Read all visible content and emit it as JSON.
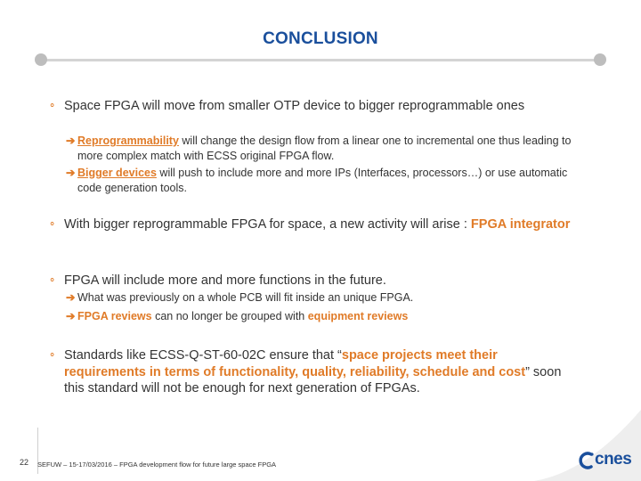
{
  "slide": {
    "title": "CONCLUSION",
    "page_number": "22",
    "footer": "SEFUW – 15-17/03/2016 – FPGA development flow for future large space FPGA",
    "logo_text": "cnes"
  },
  "bullets": [
    {
      "text": "Space FPGA will move from smaller OTP device to bigger reprogrammable ones",
      "subs": [
        {
          "em": "Reprogrammability",
          "rest": " will change the design flow from a linear one to incremental one thus leading to more complex match with ECSS original FPGA flow."
        },
        {
          "em": "Bigger devices",
          "rest": " will push to include more and more IPs (Interfaces, processors…) or use automatic code generation tools."
        }
      ]
    },
    {
      "text": "With bigger reprogrammable FPGA for space, a new activity will arise : ",
      "em": "FPGA integrator"
    },
    {
      "text": "FPGA will include more and more functions in the future.",
      "subs": [
        {
          "rest": "What was previously on a whole PCB will fit inside an unique FPGA."
        },
        {
          "em": "FPGA  reviews",
          "mid": " can no longer be grouped with ",
          "em2": "equipment reviews"
        }
      ]
    },
    {
      "pre": "Standards like ECSS-Q-ST-60-02C ensure that “",
      "em": "space projects meet their requirements in terms of functionality, quality, reliability, schedule and cost",
      "post": "” soon this standard will not be enough for next generation of FPGAs."
    }
  ],
  "colors": {
    "accent": "#e07b28",
    "title": "#1a4f9c"
  },
  "icons": {
    "bullet": "bullet-glyph-icon",
    "sub_bullet": "arrow-right-icon"
  }
}
